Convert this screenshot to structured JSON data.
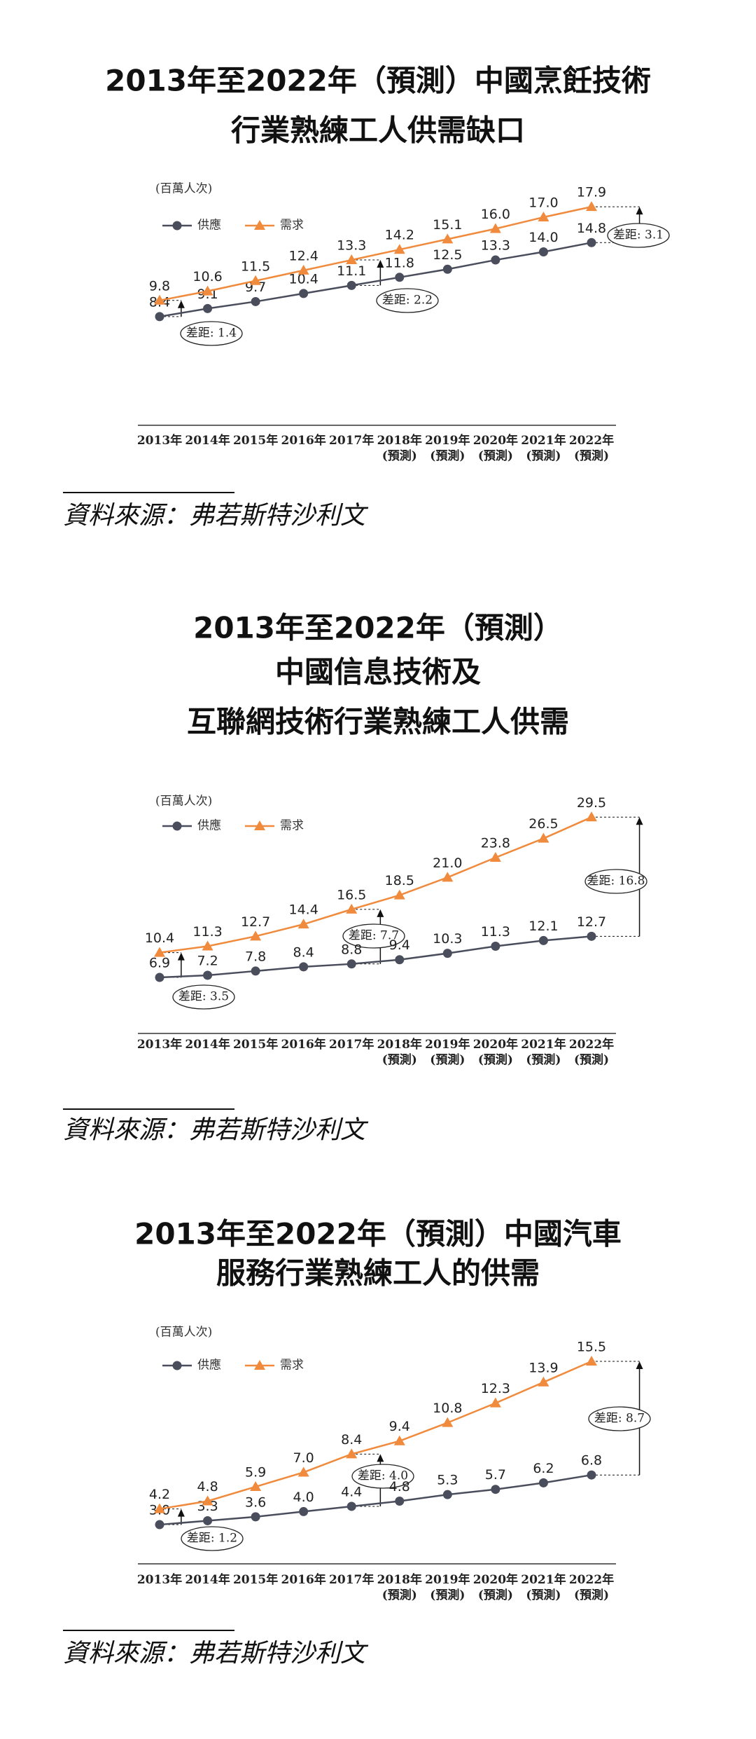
{
  "chart_data": [
    {
      "type": "line",
      "title": [
        "2013年至2022年（預測）中國烹飪技術",
        "行業熟練工人供需缺口"
      ],
      "unit": "(百萬人次)",
      "categories": [
        "2013年",
        "2014年",
        "2015年",
        "2016年",
        "2017年",
        "2018年\n(預測)",
        "2019年\n(預測)",
        "2020年\n(預測)",
        "2021年\n(預測)",
        "2022年\n(預測)"
      ],
      "series": [
        {
          "name": "供應",
          "color": "#4a4e5c",
          "marker": "circle",
          "values": [
            8.4,
            9.1,
            9.7,
            10.4,
            11.1,
            11.8,
            12.5,
            13.3,
            14.0,
            14.8
          ],
          "value_labels": [
            "8.4",
            "9.1",
            "9.7",
            "10.4",
            "11.1",
            "11.8",
            "12.5",
            "13.3",
            "14.0",
            "14.8"
          ]
        },
        {
          "name": "需求",
          "color": "#f08a3c",
          "marker": "triangle",
          "values": [
            9.8,
            10.6,
            11.5,
            12.4,
            13.3,
            14.2,
            15.1,
            16.0,
            17.0,
            17.9
          ],
          "value_labels": [
            "9.8",
            "10.6",
            "11.5",
            "12.4",
            "13.3",
            "14.2",
            "15.1",
            "16.0",
            "17.0",
            "17.9"
          ]
        }
      ],
      "annotations": [
        "差距: 1.4",
        "差距: 2.2",
        "差距: 3.1"
      ],
      "ylim": [
        -1,
        19
      ],
      "source": "資料來源：弗若斯特沙利文"
    },
    {
      "type": "line",
      "title": [
        "2013年至2022年（預測）",
        "中國信息技術及",
        "互聯網技術行業熟練工人供需"
      ],
      "unit": "(百萬人次)",
      "categories": [
        "2013年",
        "2014年",
        "2015年",
        "2016年",
        "2017年",
        "2018年\n(預測)",
        "2019年\n(預測)",
        "2020年\n(預測)",
        "2021年\n(預測)",
        "2022年\n(預測)"
      ],
      "series": [
        {
          "name": "供應",
          "color": "#4a4e5c",
          "marker": "circle",
          "values": [
            6.9,
            7.2,
            7.8,
            8.4,
            8.8,
            9.4,
            10.3,
            11.3,
            12.1,
            12.7
          ],
          "value_labels": [
            "6.9",
            "7.2",
            "7.8",
            "8.4",
            "8.8",
            "9.4",
            "10.3",
            "11.3",
            "12.1",
            "12.7"
          ]
        },
        {
          "name": "需求",
          "color": "#f08a3c",
          "marker": "triangle",
          "values": [
            10.4,
            11.3,
            12.7,
            14.4,
            16.5,
            18.5,
            21.0,
            23.8,
            26.5,
            29.5
          ],
          "value_labels": [
            "10.4",
            "11.3",
            "12.7",
            "14.4",
            "16.5",
            "18.5",
            "21.0",
            "23.8",
            "26.5",
            "29.5"
          ]
        }
      ],
      "annotations": [
        "差距: 3.5",
        "差距: 7.7",
        "差距: 16.8"
      ],
      "ylim": [
        -1,
        32
      ],
      "source": "資料來源：弗若斯特沙利文"
    },
    {
      "type": "line",
      "title": [
        "2013年至2022年（預測）中國汽車",
        "服務行業熟練工人的供需"
      ],
      "unit": "(百萬人次)",
      "categories": [
        "2013年",
        "2014年",
        "2015年",
        "2016年",
        "2017年",
        "2018年\n(預測)",
        "2019年\n(預測)",
        "2020年\n(預測)",
        "2021年\n(預測)",
        "2022年\n(預測)"
      ],
      "series": [
        {
          "name": "供應",
          "color": "#4a4e5c",
          "marker": "circle",
          "values": [
            3.0,
            3.3,
            3.6,
            4.0,
            4.4,
            4.8,
            5.3,
            5.7,
            6.2,
            6.8
          ],
          "value_labels": [
            "3.0",
            "3.3",
            "3.6",
            "4.0",
            "4.4",
            "4.8",
            "5.3",
            "5.7",
            "6.2",
            "6.8"
          ]
        },
        {
          "name": "需求",
          "color": "#f08a3c",
          "marker": "triangle",
          "values": [
            4.2,
            4.8,
            5.9,
            7.0,
            8.4,
            9.4,
            10.8,
            12.3,
            13.9,
            15.5
          ],
          "value_labels": [
            "4.2",
            "4.8",
            "5.9",
            "7.0",
            "8.4",
            "9.4",
            "10.8",
            "12.3",
            "13.9",
            "15.5"
          ]
        }
      ],
      "annotations": [
        "差距: 1.2",
        "差距: 4.0",
        "差距: 8.7"
      ],
      "ylim": [
        0,
        17
      ],
      "source": "資料來源：弗若斯特沙利文"
    }
  ]
}
